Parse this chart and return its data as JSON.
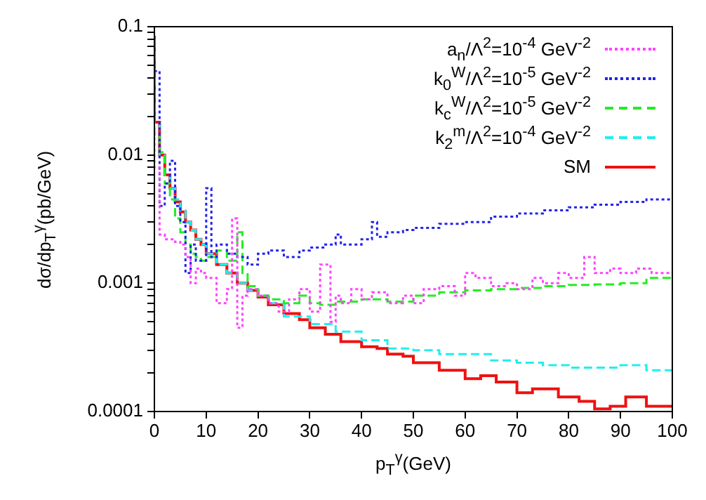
{
  "chart_data": {
    "type": "step",
    "xlabel": "p$_{T}$$^{γ}$(GeV)",
    "ylabel": "dσ/dp$_{T}$$^{γ}$(pb/GeV)",
    "log": "y",
    "grid": false,
    "legend": "top right",
    "marker": "none",
    "xlim": [
      0,
      100
    ],
    "xticks": [
      0,
      10,
      20,
      30,
      40,
      50,
      60,
      70,
      80,
      90,
      100
    ],
    "ylim": [
      0.0001,
      0.1
    ],
    "yticks": [
      0.0001,
      {
        "value": 0.0002,
        "label": null
      },
      {
        "value": 0.0003,
        "label": null
      },
      {
        "value": 0.0004,
        "label": null
      },
      {
        "value": 0.0005,
        "label": null
      },
      {
        "value": 0.0006,
        "label": null
      },
      {
        "value": 0.0007,
        "label": null
      },
      {
        "value": 0.0008,
        "label": null
      },
      {
        "value": 0.0009,
        "label": null
      },
      0.001,
      {
        "value": 0.002,
        "label": null
      },
      {
        "value": 0.003,
        "label": null
      },
      {
        "value": 0.004,
        "label": null
      },
      {
        "value": 0.005,
        "label": null
      },
      {
        "value": 0.006,
        "label": null
      },
      {
        "value": 0.007,
        "label": null
      },
      {
        "value": 0.008,
        "label": null
      },
      {
        "value": 0.009,
        "label": null
      },
      0.01,
      {
        "value": 0.02,
        "label": null
      },
      {
        "value": 0.03,
        "label": null
      },
      {
        "value": 0.04,
        "label": null
      },
      {
        "value": 0.05,
        "label": null
      },
      {
        "value": 0.06,
        "label": null
      },
      {
        "value": 0.07,
        "label": null
      },
      {
        "value": 0.08,
        "label": null
      },
      {
        "value": 0.09,
        "label": null
      },
      0.1
    ],
    "series": [
      {
        "name": "a$_{n}$/Λ$^{2}$=10$^{-4}$ GeV$^{-2}$",
        "color": "#ff44ff",
        "line_style": "dotted",
        "x": [
          0,
          1,
          2,
          3,
          4,
          5,
          6,
          7,
          8,
          9,
          10,
          12,
          14,
          15,
          16,
          17,
          18,
          20,
          22,
          24,
          26,
          28,
          30,
          32,
          34,
          35,
          36,
          38,
          40,
          42,
          45,
          48,
          50,
          52,
          55,
          58,
          60,
          62,
          65,
          68,
          70,
          73,
          75,
          78,
          80,
          83,
          85,
          88,
          90,
          93,
          96,
          100
        ],
        "values": [
          0.025,
          0.008,
          0.0024,
          0.0022,
          0.0022,
          0.0021,
          0.002,
          0.0016,
          0.001,
          0.0013,
          0.0012,
          0.0011,
          0.0007,
          0.0009,
          0.0032,
          0.00045,
          0.0008,
          0.0009,
          0.0008,
          0.0007,
          0.0006,
          0.00075,
          0.0009,
          0.0006,
          0.0014,
          0.0005,
          0.0008,
          0.0007,
          0.0009,
          0.00075,
          0.00085,
          0.0007,
          0.0008,
          0.0007,
          0.0009,
          0.00095,
          0.0008,
          0.0012,
          0.0011,
          0.00095,
          0.001,
          0.0009,
          0.0011,
          0.001,
          0.0012,
          0.0011,
          0.0016,
          0.0012,
          0.0013,
          0.0012,
          0.0013,
          0.0012
        ]
      },
      {
        "name": "k$_{0}$$^{W}$/Λ$^{2}$=10$^{-5}$ GeV$^{-2}$",
        "color": "#2222ee",
        "line_style": "dotted",
        "x": [
          0,
          1,
          2,
          3,
          4,
          5,
          6,
          7,
          8,
          10,
          11,
          12,
          14,
          16,
          18,
          20,
          22,
          25,
          28,
          30,
          33,
          35,
          36,
          38,
          40,
          42,
          43,
          45,
          48,
          50,
          55,
          60,
          65,
          70,
          75,
          80,
          85,
          90,
          95,
          100
        ],
        "values": [
          0.05,
          0.045,
          0.004,
          0.006,
          0.009,
          0.004,
          0.003,
          0.0012,
          0.002,
          0.0015,
          0.0055,
          0.0016,
          0.002,
          0.0017,
          0.0016,
          0.0014,
          0.0017,
          0.0018,
          0.0016,
          0.0018,
          0.0019,
          0.002,
          0.0024,
          0.002,
          0.002,
          0.0022,
          0.003,
          0.0023,
          0.0025,
          0.0026,
          0.0027,
          0.0029,
          0.003,
          0.0033,
          0.0035,
          0.0037,
          0.0039,
          0.0041,
          0.0043,
          0.0045
        ]
      },
      {
        "name": "k$_{c}$$^{W}$/Λ$^{2}$=10$^{-5}$ GeV$^{-2}$",
        "color": "#22ee22",
        "line_style": "dashed",
        "x": [
          0,
          1,
          2,
          3,
          4,
          5,
          6,
          7,
          8,
          9,
          10,
          12,
          14,
          16,
          17,
          18,
          20,
          22,
          25,
          28,
          30,
          32,
          35,
          40,
          45,
          50,
          55,
          60,
          65,
          70,
          75,
          80,
          85,
          90,
          95,
          100
        ],
        "values": [
          0.08,
          0.014,
          0.0105,
          0.006,
          0.0045,
          0.0032,
          0.0025,
          0.002,
          0.0017,
          0.0016,
          0.0015,
          0.0016,
          0.0018,
          0.0015,
          0.0025,
          0.0012,
          0.00095,
          0.0008,
          0.00075,
          0.0007,
          0.0008,
          0.0007,
          0.00068,
          0.00072,
          0.00075,
          0.00072,
          0.0008,
          0.00085,
          0.00088,
          0.0009,
          0.00092,
          0.00095,
          0.00097,
          0.00098,
          0.001,
          0.0011
        ]
      },
      {
        "name": "k$_{2}$$^{m}$/Λ$^{2}$=10$^{-4}$ GeV$^{-2}$",
        "color": "#22eeee",
        "line_style": "dashed",
        "x": [
          1,
          2,
          3,
          4,
          5,
          6,
          7,
          8,
          9,
          10,
          12,
          14,
          16,
          18,
          20,
          22,
          25,
          30,
          35,
          40,
          45,
          50,
          55,
          60,
          65,
          70,
          75,
          80,
          85,
          90,
          95,
          100
        ],
        "values": [
          0.018,
          0.01,
          0.007,
          0.0055,
          0.0045,
          0.0037,
          0.003,
          0.0026,
          0.0022,
          0.002,
          0.0017,
          0.0014,
          0.0012,
          0.001,
          0.00088,
          0.0008,
          0.0007,
          0.00055,
          0.00048,
          0.00042,
          0.00036,
          0.00031,
          0.0003,
          0.00028,
          0.00028,
          0.00025,
          0.00024,
          0.00023,
          0.00022,
          0.00022,
          0.00023,
          0.00021
        ]
      },
      {
        "name": "SM",
        "color": "#ee1111",
        "line_style": "solid",
        "x": [
          0,
          1,
          2,
          3,
          4,
          5,
          6,
          7,
          8,
          9,
          10,
          12,
          14,
          16,
          18,
          20,
          22,
          25,
          28,
          30,
          33,
          36,
          40,
          43,
          45,
          48,
          50,
          55,
          60,
          63,
          66,
          70,
          73,
          78,
          82,
          85,
          88,
          91,
          95,
          97,
          100
        ],
        "values": [
          0.085,
          0.018,
          0.01,
          0.007,
          0.0055,
          0.0043,
          0.0036,
          0.003,
          0.0026,
          0.0022,
          0.002,
          0.0017,
          0.0014,
          0.0012,
          0.001,
          0.00088,
          0.00078,
          0.00068,
          0.00058,
          0.00052,
          0.00045,
          0.0004,
          0.00035,
          0.00032,
          0.00031,
          0.00028,
          0.00027,
          0.00024,
          0.00021,
          0.00018,
          0.00019,
          0.00017,
          0.00014,
          0.00015,
          0.00013,
          0.00012,
          0.000105,
          0.00011,
          0.00013,
          0.00011,
          0.00011
        ]
      }
    ]
  }
}
